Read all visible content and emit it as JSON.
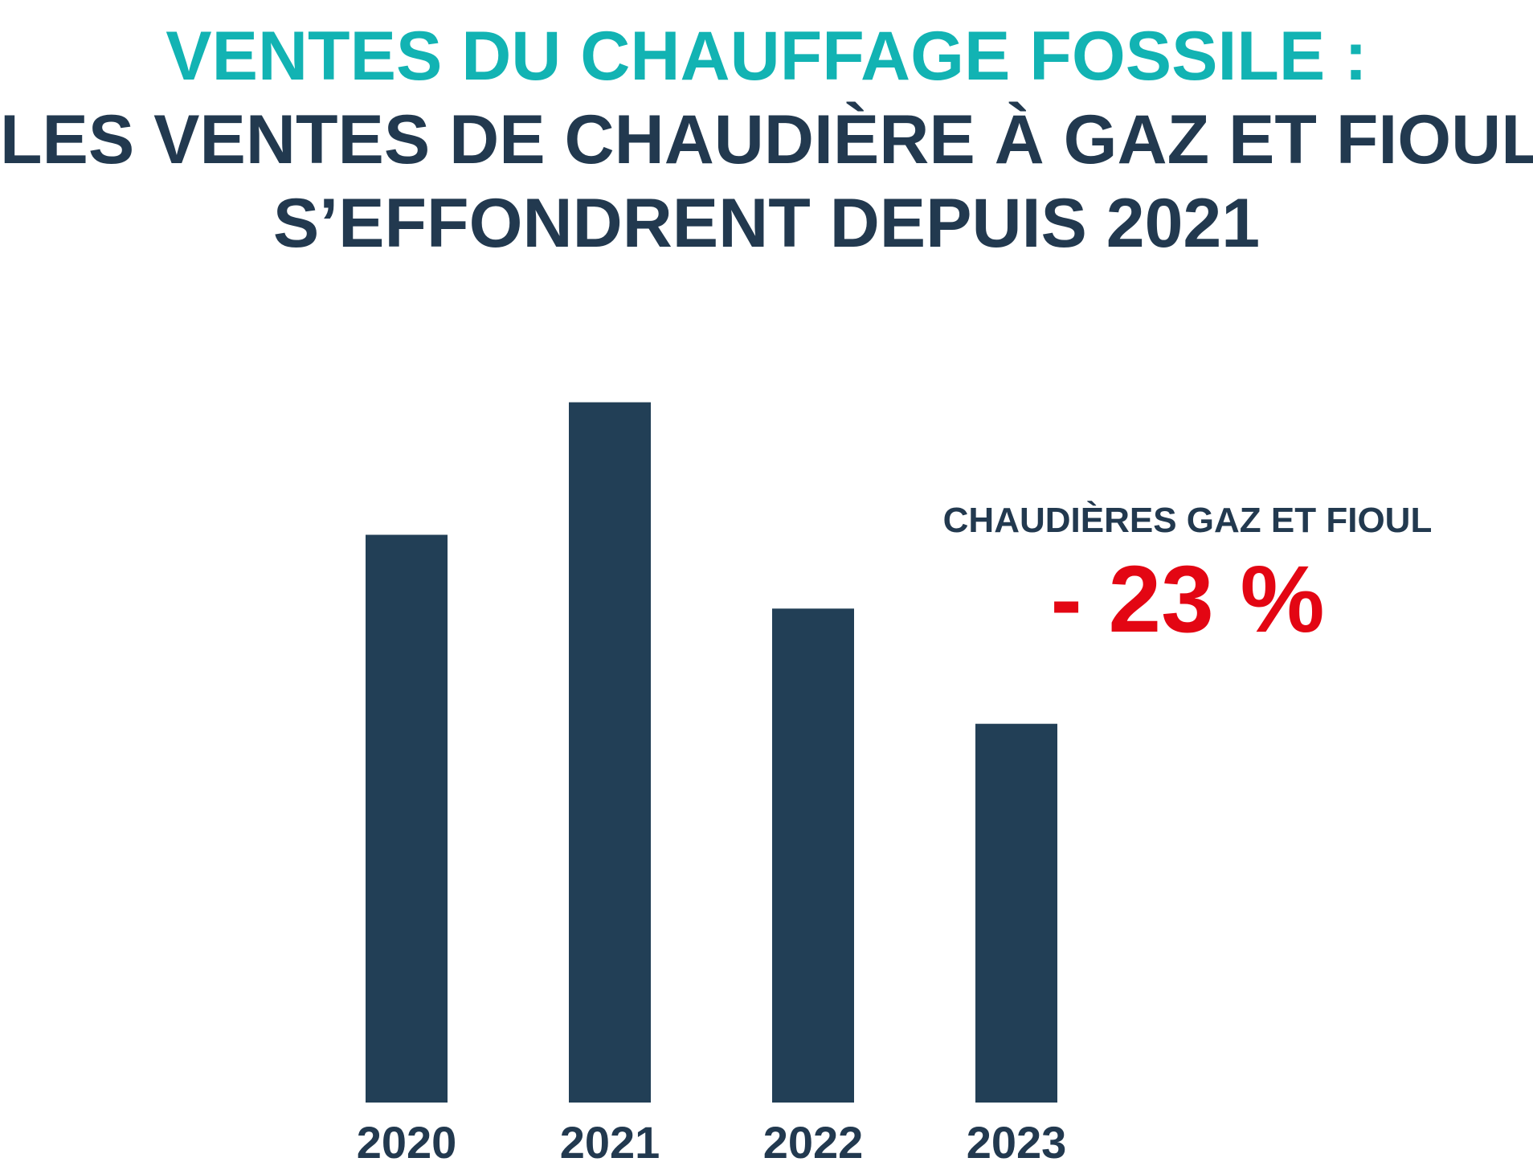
{
  "title": {
    "line1": "VENTES DU CHAUFFAGE FOSSILE :",
    "line2": "LES VENTES DE CHAUDIÈRE À GAZ ET FIOUL",
    "line3": "S’EFFONDRENT DEPUIS 2021"
  },
  "colors": {
    "title_accent": "#12b3b3",
    "text_dark": "#22394f",
    "bar": "#223f56",
    "highlight_red": "#e30613"
  },
  "chart_data": {
    "type": "bar",
    "categories": [
      "2020",
      "2021",
      "2022",
      "2023"
    ],
    "values": [
      75.4,
      93.0,
      65.6,
      50.3
    ],
    "ylim": [
      0,
      100
    ],
    "grid": false,
    "yaxis_visible": false,
    "annotation": {
      "label": "CHAUDIÈRES GAZ ET FIOUL",
      "value": "- 23 %"
    }
  }
}
